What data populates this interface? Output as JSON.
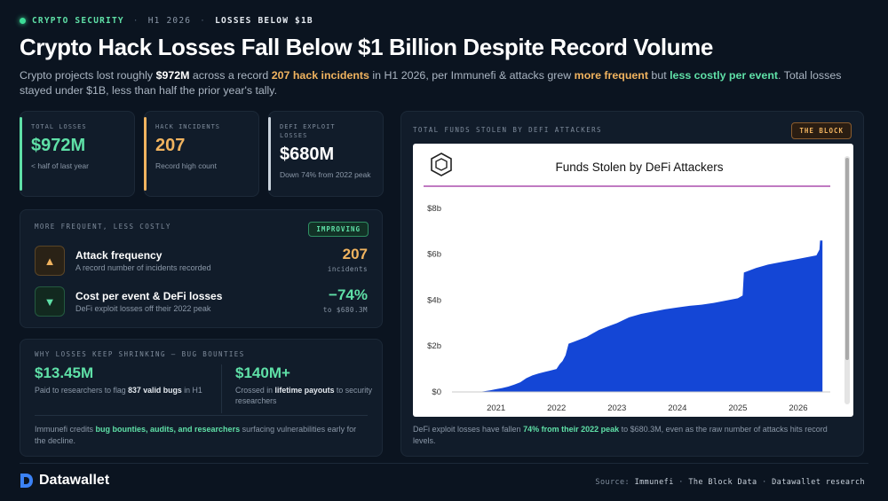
{
  "header": {
    "tag": "CRYPTO SECURITY",
    "period": "H1 2026",
    "headline_tag": "LOSSES BELOW $1B",
    "title": "Crypto Hack Losses Fall Below $1 Billion Despite Record Volume",
    "lede": {
      "p1": "Crypto projects lost roughly ",
      "amount": "$972M",
      "p2": " across a record ",
      "incidents": "207 hack incidents",
      "p3": " in H1 2026, per Immunefi & attacks grew ",
      "frequent": "more frequent",
      "p4": " but ",
      "costly": "less costly per event",
      "p5": ". Total losses stayed under $1B, less than half the prior year's tally."
    }
  },
  "stats": [
    {
      "label": "TOTAL LOSSES",
      "value": "$972M",
      "sub": "< half of last year",
      "color": "#5fe0a7"
    },
    {
      "label": "HACK INCIDENTS",
      "value": "207",
      "sub": "Record high count",
      "color": "#f0b35f"
    },
    {
      "label": "DEFI EXPLOIT LOSSES",
      "value": "$680M",
      "sub": "Down 74% from 2022 peak",
      "color": "#c9d2dc"
    }
  ],
  "frequency": {
    "heading": "MORE FREQUENT, LESS COSTLY",
    "badge": "IMPROVING",
    "rows": [
      {
        "title": "Attack frequency",
        "sub": "A record number of incidents recorded",
        "value": "207",
        "unit": "incidents",
        "icon": "triangle-up-icon",
        "glyph": "▲"
      },
      {
        "title": "Cost per event & DeFi losses",
        "sub": "DeFi exploit losses off their 2022 peak",
        "value": "−74%",
        "unit": "to $680.3M",
        "icon": "triangle-down-icon",
        "glyph": "▼"
      }
    ]
  },
  "bounties": {
    "heading": "WHY LOSSES KEEP SHRINKING — BUG BOUNTIES",
    "left": {
      "value": "$13.45M",
      "s1": "Paid to researchers to flag ",
      "s_bold": "837 valid bugs",
      "s2": " in H1"
    },
    "right": {
      "value": "$140M+",
      "s1": "Crossed in ",
      "s_bold": "lifetime payouts",
      "s2": " to security researchers"
    },
    "note": {
      "p1": "Immunefi credits ",
      "hl": "bug bounties, audits, and researchers",
      "p2": " surfacing vulnerabilities early for the decline."
    }
  },
  "chart_card": {
    "heading": "TOTAL FUNDS STOLEN BY DEFI ATTACKERS",
    "badge": "THE BLOCK",
    "caption": {
      "p1": "DeFi exploit losses have fallen ",
      "hl": "74% from their 2022 peak",
      "p2": " to $680.3M, even as the raw number of attacks hits record levels."
    }
  },
  "chart_data": {
    "type": "area",
    "title": "Funds Stolen by DeFi Attackers",
    "xlabel": "",
    "ylabel": "",
    "x_ticks": [
      "2021",
      "2022",
      "2023",
      "2024",
      "2025",
      "2026"
    ],
    "y_ticks": [
      "$0",
      "$2b",
      "$4b",
      "$6b",
      "$8b"
    ],
    "ylim": [
      0,
      8.5
    ],
    "xlim": [
      2020.3,
      2026.5
    ],
    "grid": false,
    "series": [
      {
        "color": "#1446d6",
        "x": [
          2020.3,
          2020.7,
          2020.8,
          2020.9,
          2021.0,
          2021.1,
          2021.2,
          2021.3,
          2021.4,
          2021.5,
          2021.6,
          2021.7,
          2021.8,
          2021.9,
          2022.0,
          2022.05,
          2022.1,
          2022.15,
          2022.2,
          2022.3,
          2022.4,
          2022.5,
          2022.6,
          2022.7,
          2022.8,
          2022.9,
          2023.0,
          2023.2,
          2023.4,
          2023.6,
          2023.8,
          2024.0,
          2024.2,
          2024.4,
          2024.6,
          2024.8,
          2025.0,
          2025.08,
          2025.1,
          2025.3,
          2025.5,
          2025.7,
          2025.9,
          2026.1,
          2026.3,
          2026.35,
          2026.36,
          2026.4
        ],
        "y": [
          0.0,
          0.0,
          0.03,
          0.07,
          0.12,
          0.17,
          0.23,
          0.32,
          0.42,
          0.6,
          0.72,
          0.8,
          0.87,
          0.93,
          1.0,
          1.2,
          1.35,
          1.6,
          2.1,
          2.2,
          2.3,
          2.4,
          2.55,
          2.7,
          2.8,
          2.9,
          3.0,
          3.25,
          3.4,
          3.5,
          3.6,
          3.68,
          3.75,
          3.8,
          3.88,
          3.98,
          4.08,
          4.2,
          5.2,
          5.4,
          5.55,
          5.65,
          5.75,
          5.85,
          5.95,
          6.2,
          6.6,
          6.6
        ]
      }
    ]
  },
  "footer": {
    "brand": "Datawallet",
    "source_label": "Source:",
    "sources": [
      "Immunefi",
      "The Block Data",
      "Datawallet research"
    ],
    "dot": "·"
  }
}
